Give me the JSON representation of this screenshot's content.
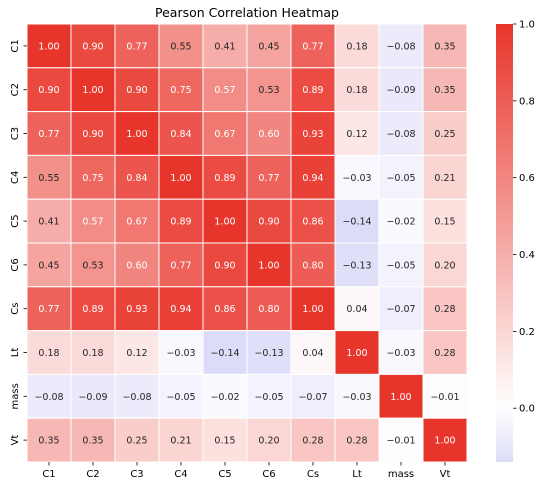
{
  "chart_data": {
    "type": "heatmap",
    "title": "Pearson Correlation Heatmap",
    "xlabel": "",
    "ylabel": "",
    "categories": [
      "C1",
      "C2",
      "C3",
      "C4",
      "C5",
      "C6",
      "Cs",
      "Lt",
      "mass",
      "Vt"
    ],
    "values": [
      [
        1.0,
        0.9,
        0.77,
        0.55,
        0.41,
        0.45,
        0.77,
        0.18,
        -0.08,
        0.35
      ],
      [
        0.9,
        1.0,
        0.9,
        0.75,
        0.57,
        0.53,
        0.89,
        0.18,
        -0.09,
        0.35
      ],
      [
        0.77,
        0.9,
        1.0,
        0.84,
        0.67,
        0.6,
        0.93,
        0.12,
        -0.08,
        0.25
      ],
      [
        0.55,
        0.75,
        0.84,
        1.0,
        0.89,
        0.77,
        0.94,
        -0.03,
        -0.05,
        0.21
      ],
      [
        0.41,
        0.57,
        0.67,
        0.89,
        1.0,
        0.9,
        0.86,
        -0.14,
        -0.02,
        0.15
      ],
      [
        0.45,
        0.53,
        0.6,
        0.77,
        0.9,
        1.0,
        0.8,
        -0.13,
        -0.05,
        0.2
      ],
      [
        0.77,
        0.89,
        0.93,
        0.94,
        0.86,
        0.8,
        1.0,
        0.04,
        -0.07,
        0.28
      ],
      [
        0.18,
        0.18,
        0.12,
        -0.03,
        -0.14,
        -0.13,
        0.04,
        1.0,
        -0.03,
        0.28
      ],
      [
        -0.08,
        -0.09,
        -0.08,
        -0.05,
        -0.02,
        -0.05,
        -0.07,
        -0.03,
        1.0,
        -0.01
      ],
      [
        0.35,
        0.35,
        0.25,
        0.21,
        0.15,
        0.2,
        0.28,
        0.28,
        -0.01,
        1.0
      ]
    ],
    "value_format": "0.00",
    "colorbar": {
      "range": [
        -0.14,
        1.0
      ],
      "ticks": [
        0.0,
        0.2,
        0.4,
        0.6,
        0.8,
        1.0
      ],
      "tick_labels": [
        "0.0",
        "0.2",
        "0.4",
        "0.6",
        "0.8",
        "1.0"
      ]
    },
    "colors": {
      "low": "#dcdcf8",
      "mid": "#ffffff",
      "high": "#e8352b",
      "grid": "#ffffff"
    },
    "grid": false,
    "legend": "right (colorbar)"
  }
}
